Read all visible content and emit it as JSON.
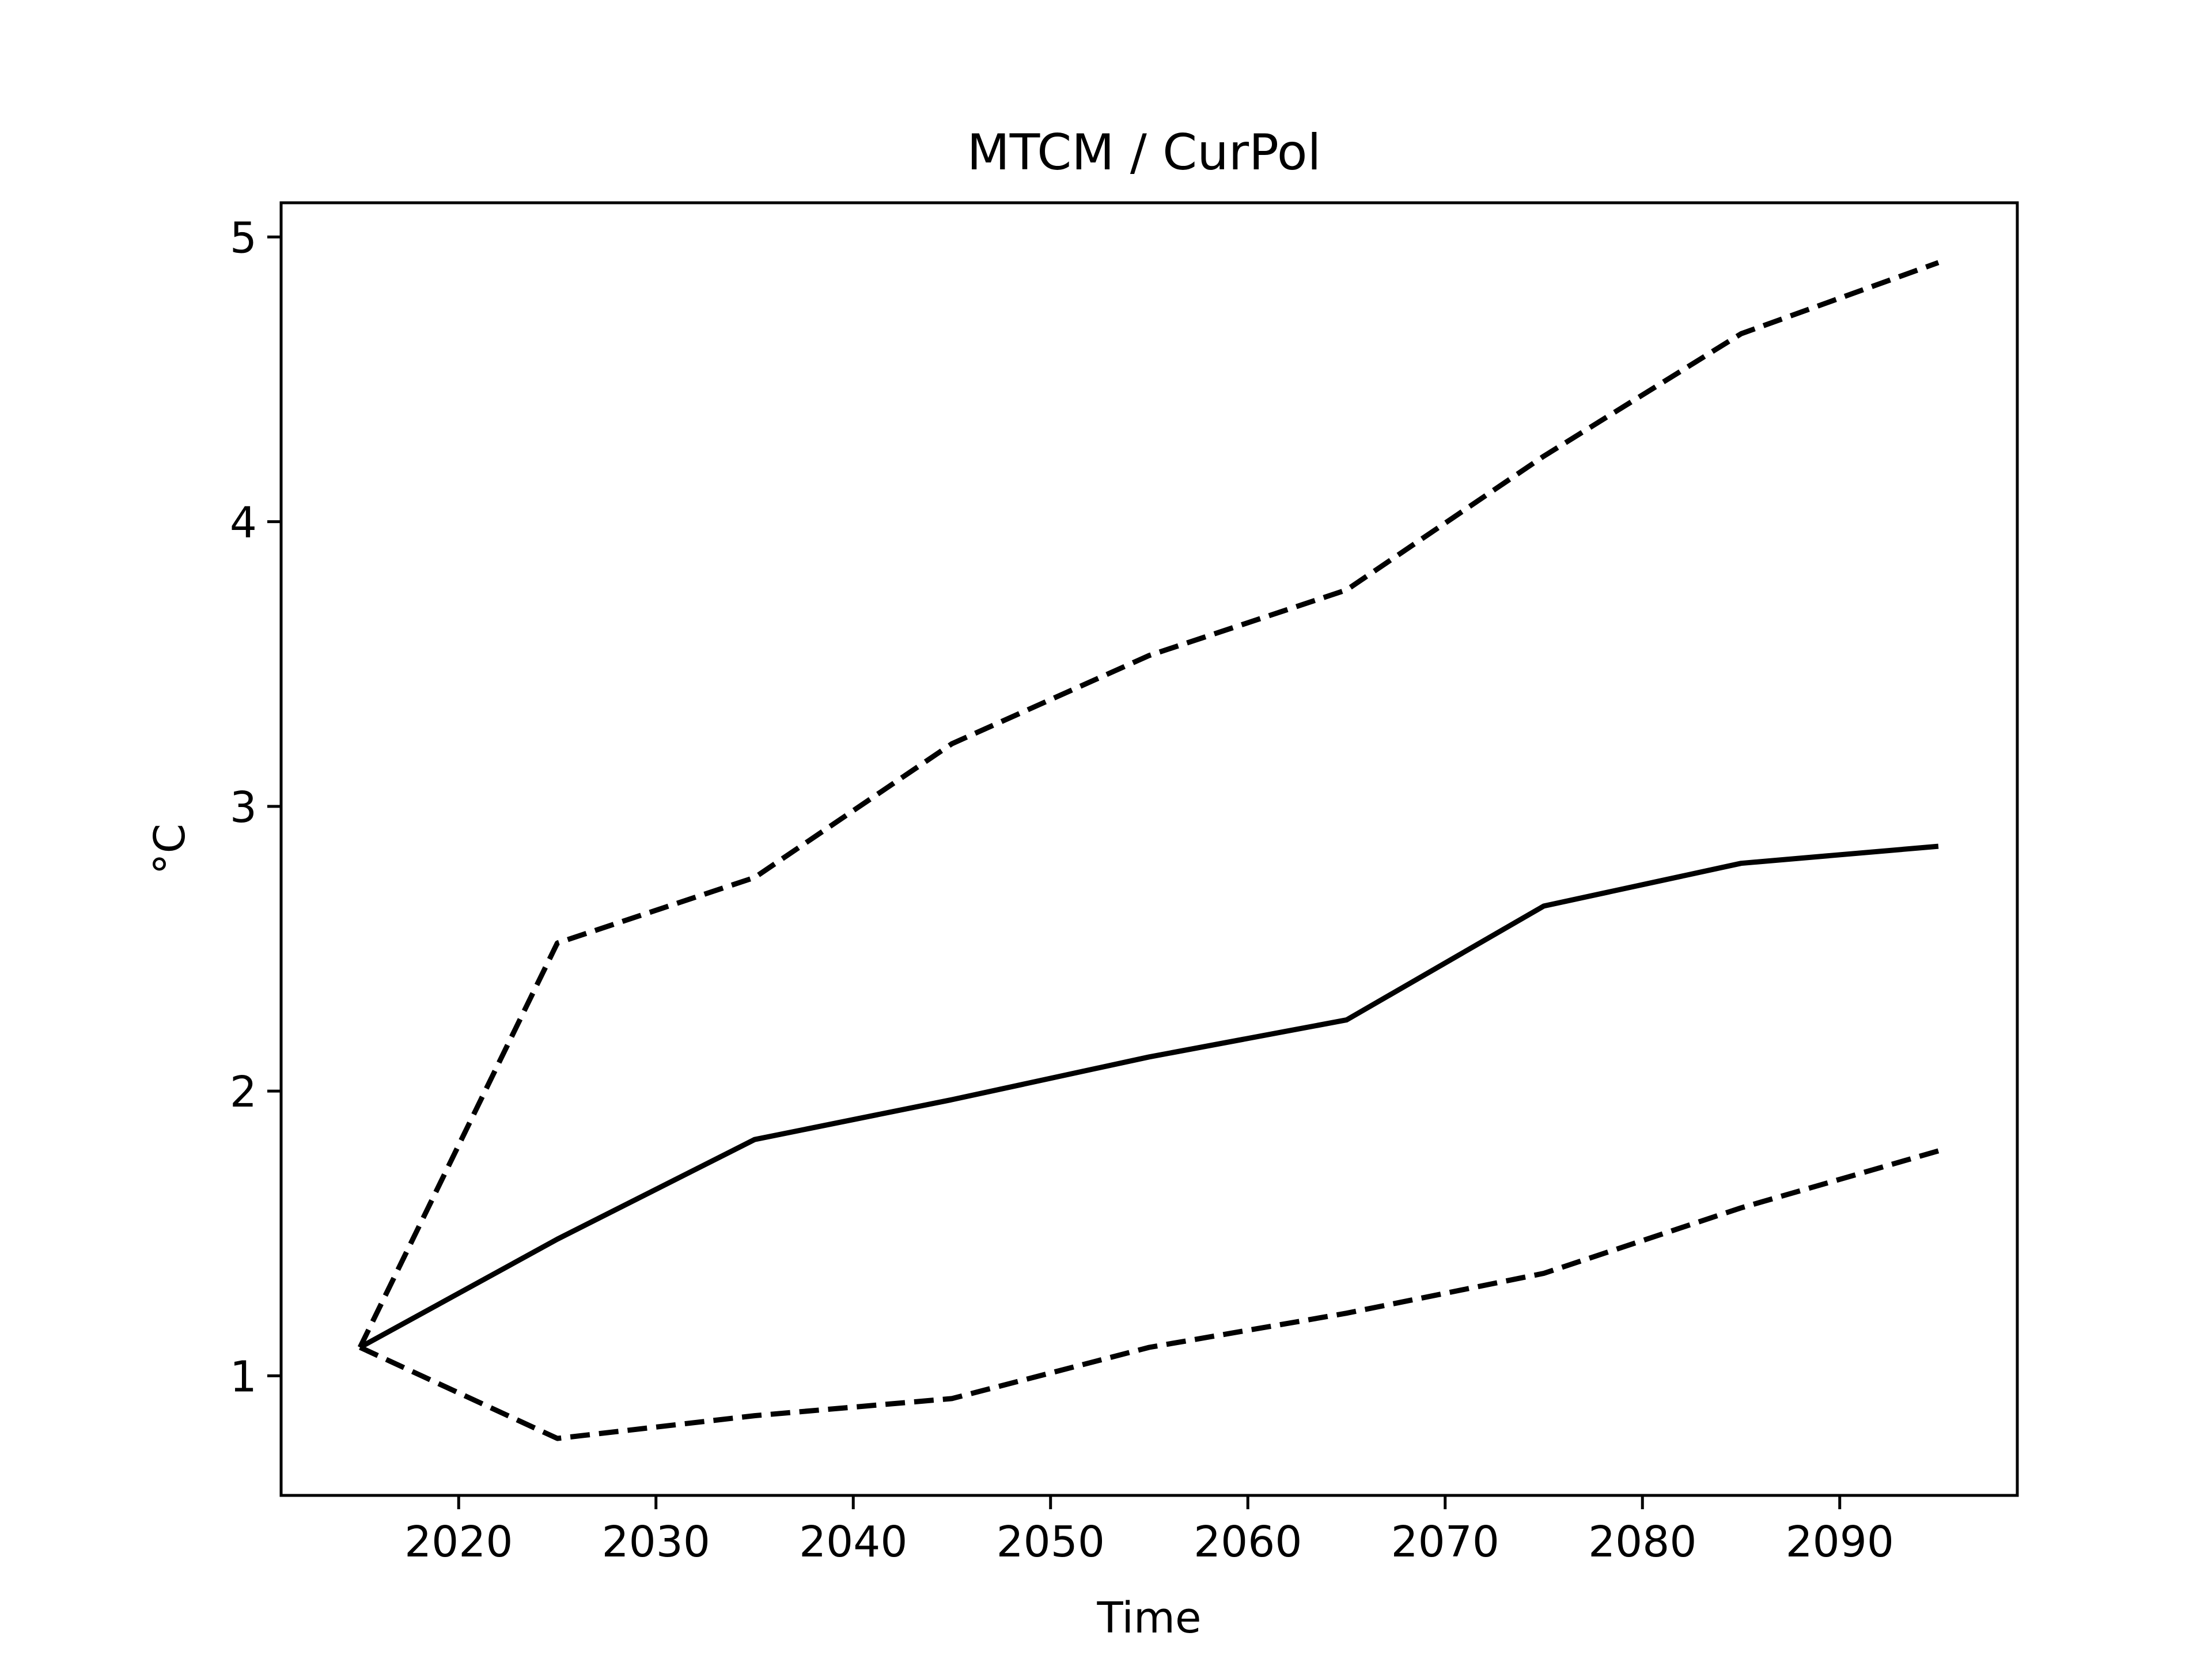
{
  "chart_data": {
    "type": "line",
    "title": "MTCM / CurPol",
    "xlabel": "Time",
    "ylabel": "°C",
    "xlim": [
      2011,
      2099
    ],
    "ylim": [
      0.58,
      5.12
    ],
    "xticks": [
      2020,
      2030,
      2040,
      2050,
      2060,
      2070,
      2080,
      2090
    ],
    "yticks": [
      1,
      2,
      3,
      4,
      5
    ],
    "grid": false,
    "legend": "none",
    "x": [
      2015,
      2025,
      2035,
      2045,
      2055,
      2065,
      2075,
      2085,
      2095
    ],
    "series": [
      {
        "style": "dashed",
        "color": "#000000",
        "values": [
          1.1,
          2.52,
          2.75,
          3.22,
          3.53,
          3.76,
          4.23,
          4.66,
          4.91
        ]
      },
      {
        "style": "solid",
        "color": "#000000",
        "values": [
          1.1,
          1.48,
          1.83,
          1.97,
          2.12,
          2.25,
          2.65,
          2.8,
          2.86
        ]
      },
      {
        "style": "dashed",
        "color": "#000000",
        "values": [
          1.1,
          0.78,
          0.86,
          0.92,
          1.1,
          1.22,
          1.36,
          1.59,
          1.79
        ]
      }
    ]
  }
}
